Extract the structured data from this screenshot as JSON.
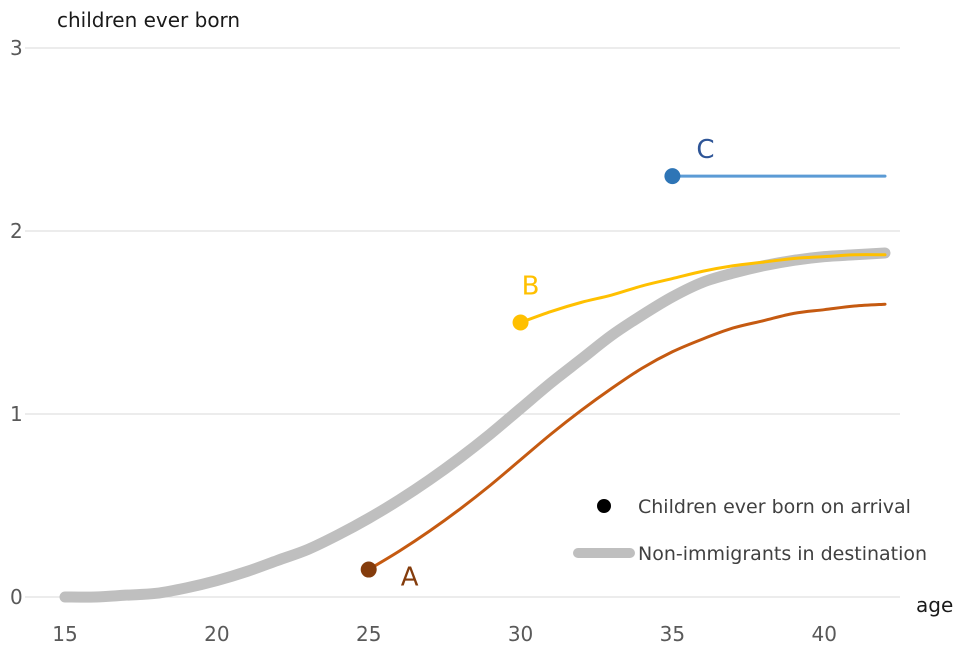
{
  "chart_data": {
    "type": "line",
    "title": "",
    "ylabel": "children ever born",
    "xlabel": "age",
    "xlim": [
      15,
      42
    ],
    "ylim": [
      0,
      3
    ],
    "x_ticks": [
      15,
      20,
      25,
      30,
      35,
      40
    ],
    "y_ticks": [
      0,
      1,
      2,
      3
    ],
    "grid": "horizontal",
    "legend": {
      "position": "bottom-right",
      "entries": [
        {
          "label": "Children ever born on arrival",
          "marker": "dot",
          "color": "#000000"
        },
        {
          "label": "Non-immigrants in destination",
          "marker": "thick-line",
          "color": "#bfbfbf"
        }
      ]
    },
    "series": [
      {
        "name": "Non-immigrants in destination",
        "color": "#bfbfbf",
        "x": [
          15,
          16,
          17,
          18,
          19,
          20,
          21,
          22,
          23,
          24,
          25,
          26,
          27,
          28,
          29,
          30,
          31,
          32,
          33,
          34,
          35,
          36,
          37,
          38,
          39,
          40,
          41,
          42
        ],
        "y": [
          0.0,
          0.0,
          0.01,
          0.02,
          0.05,
          0.09,
          0.14,
          0.2,
          0.26,
          0.34,
          0.43,
          0.53,
          0.64,
          0.76,
          0.89,
          1.03,
          1.17,
          1.3,
          1.43,
          1.54,
          1.64,
          1.72,
          1.77,
          1.81,
          1.84,
          1.86,
          1.87,
          1.88
        ]
      },
      {
        "name": "A",
        "color": "#c55a11",
        "x": [
          25,
          26,
          27,
          28,
          29,
          30,
          31,
          32,
          33,
          34,
          35,
          36,
          37,
          38,
          39,
          40,
          41,
          42
        ],
        "y": [
          0.15,
          0.25,
          0.36,
          0.48,
          0.61,
          0.75,
          0.89,
          1.02,
          1.14,
          1.25,
          1.34,
          1.41,
          1.47,
          1.51,
          1.55,
          1.57,
          1.59,
          1.6
        ]
      },
      {
        "name": "B",
        "color": "#ffc000",
        "x": [
          30,
          31,
          32,
          33,
          34,
          35,
          36,
          37,
          38,
          39,
          40,
          41,
          42
        ],
        "y": [
          1.5,
          1.56,
          1.61,
          1.65,
          1.7,
          1.74,
          1.78,
          1.81,
          1.83,
          1.85,
          1.86,
          1.87,
          1.87
        ]
      },
      {
        "name": "C",
        "color": "#5b9bd5",
        "x": [
          35,
          42
        ],
        "y": [
          2.3,
          2.3
        ]
      }
    ],
    "arrival_points": [
      {
        "series": "A",
        "x": 25,
        "y": 0.15,
        "color": "#843c0c"
      },
      {
        "series": "B",
        "x": 30,
        "y": 1.5,
        "color": "#ffc000"
      },
      {
        "series": "C",
        "x": 35,
        "y": 2.3,
        "color": "#2e75b6"
      }
    ],
    "series_labels": [
      {
        "text": "A",
        "color": "#843c0c",
        "anchor_x": 25,
        "anchor_y": 0.15,
        "placement": "right-below"
      },
      {
        "text": "B",
        "color": "#ffc000",
        "anchor_x": 30,
        "anchor_y": 1.5,
        "placement": "above"
      },
      {
        "text": "C",
        "color": "#2e5597",
        "anchor_x": 35,
        "anchor_y": 2.3,
        "placement": "above-right"
      }
    ]
  }
}
